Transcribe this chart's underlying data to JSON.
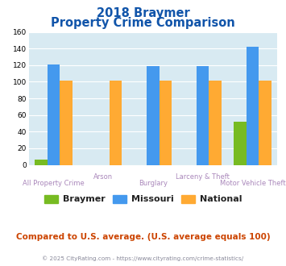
{
  "title_line1": "2018 Braymer",
  "title_line2": "Property Crime Comparison",
  "categories_top": [
    "",
    "Arson",
    "",
    "Larceny & Theft",
    ""
  ],
  "categories_bottom": [
    "All Property Crime",
    "",
    "Burglary",
    "",
    "Motor Vehicle Theft"
  ],
  "braymer": [
    6,
    0,
    0,
    0,
    52
  ],
  "missouri": [
    121,
    0,
    119,
    119,
    142
  ],
  "national": [
    101,
    101,
    101,
    101,
    101
  ],
  "braymer_color": "#77bb22",
  "missouri_color": "#4499ee",
  "national_color": "#ffaa33",
  "bg_color": "#d8eaf2",
  "title_color": "#1155aa",
  "xlabel_color": "#aa88bb",
  "note_color": "#cc4400",
  "footer_color": "#888899",
  "footer_link_color": "#4488cc",
  "ylim": [
    0,
    160
  ],
  "yticks": [
    0,
    20,
    40,
    60,
    80,
    100,
    120,
    140,
    160
  ],
  "note_text": "Compared to U.S. average. (U.S. average equals 100)",
  "footer_prefix": "© 2025 CityRating.com - ",
  "footer_link": "https://www.cityrating.com/crime-statistics/",
  "legend_labels": [
    "Braymer",
    "Missouri",
    "National"
  ],
  "bar_width": 0.25
}
